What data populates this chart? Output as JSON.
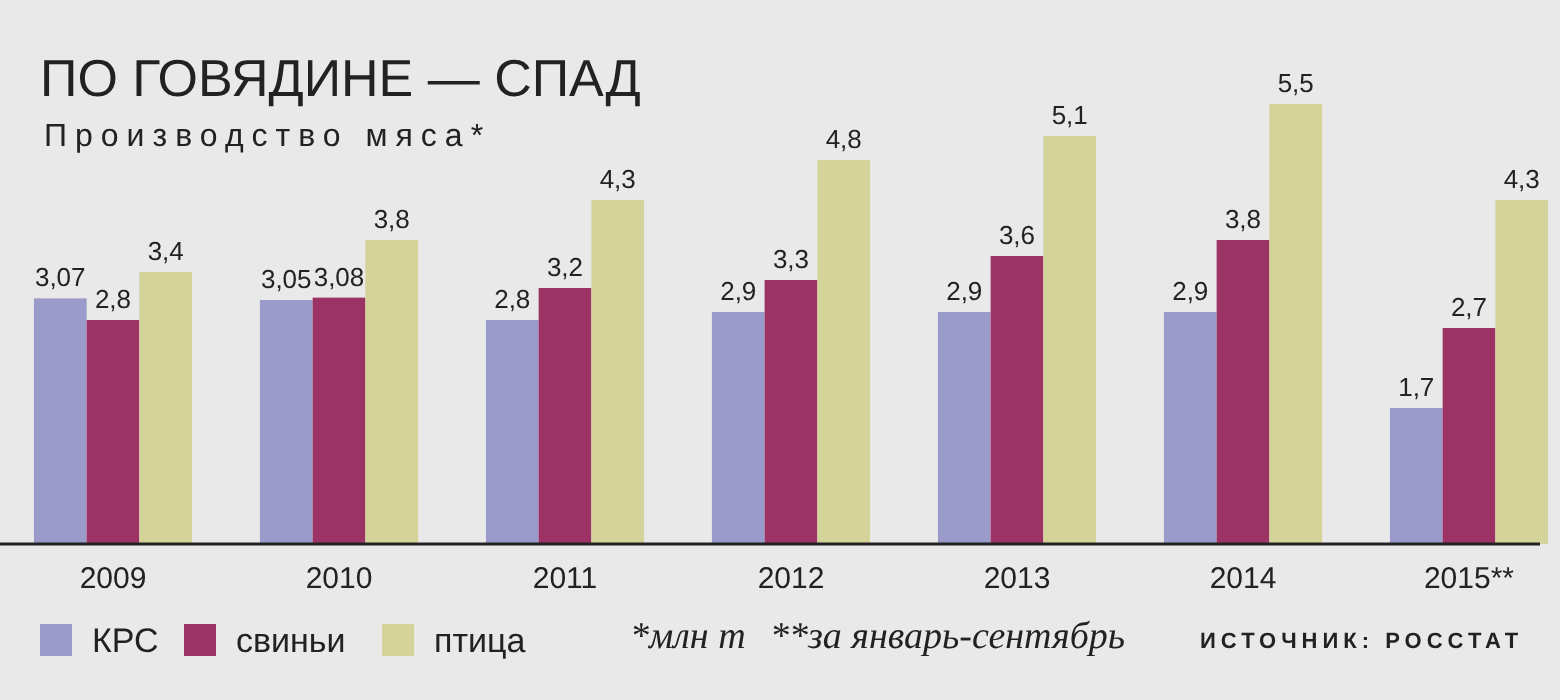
{
  "chart_data": {
    "type": "bar",
    "title": "ПО ГОВЯДИНЕ — СПАД",
    "subtitle": "Производство мяса*",
    "categories": [
      "2009",
      "2010",
      "2011",
      "2012",
      "2013",
      "2014",
      "2015**"
    ],
    "series": [
      {
        "name": "КРС",
        "color": "#9b9bcb",
        "values": [
          3.07,
          3.05,
          2.8,
          2.9,
          2.9,
          2.9,
          1.7
        ],
        "value_labels": [
          "3,07",
          "3,05",
          "2,8",
          "2,9",
          "2,9",
          "2,9",
          "1,7"
        ]
      },
      {
        "name": "свиньи",
        "color": "#9b3465",
        "values": [
          2.8,
          3.08,
          3.2,
          3.3,
          3.6,
          3.8,
          2.7
        ],
        "value_labels": [
          "2,8",
          "3,08",
          "3,2",
          "3,3",
          "3,6",
          "3,8",
          "2,7"
        ]
      },
      {
        "name": "птица",
        "color": "#d3d39a",
        "values": [
          3.4,
          3.8,
          4.3,
          4.8,
          5.1,
          5.5,
          4.3
        ],
        "value_labels": [
          "3,4",
          "3,8",
          "4,3",
          "4,8",
          "5,1",
          "5,5",
          "4,3"
        ]
      }
    ],
    "legend": "bottom left",
    "annotations": [
      "*млн т",
      "**за январь-сентябрь",
      "ИСТОЧНИК: РОССТАТ"
    ]
  }
}
